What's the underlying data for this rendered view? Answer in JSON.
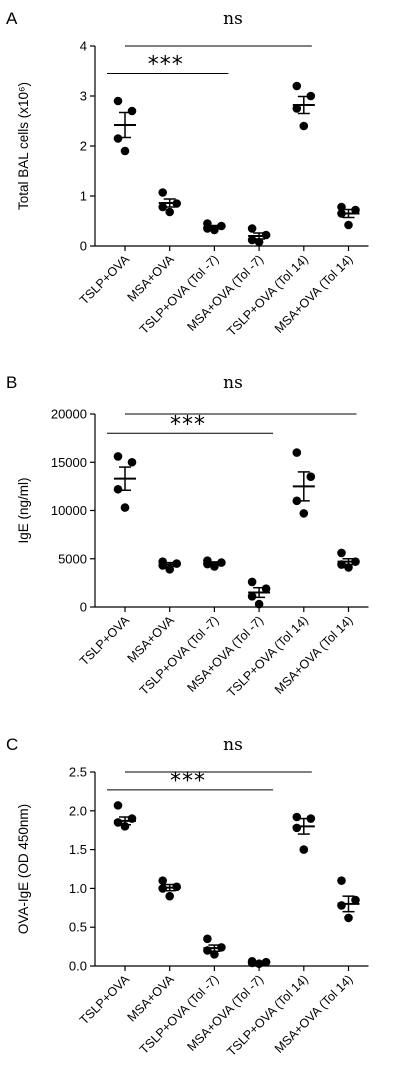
{
  "chart_data": [
    {
      "type": "scatter",
      "panel": "A",
      "ylabel": "Total BAL cells (x10⁶)",
      "ylim": [
        0,
        4
      ],
      "yticks": [
        0,
        1,
        2,
        3,
        4
      ],
      "ytick_labels": [
        "0",
        "1",
        "2",
        "3",
        "4"
      ],
      "categories": [
        "TSLP+OVA",
        "MSA+OVA",
        "TSLP+OVA (Tol -7)",
        "MSA+OVA (Tol -7)",
        "TSLP+OVA (Tol 14)",
        "MSA+OVA (Tol 14)"
      ],
      "series": [
        {
          "points": [
            2.9,
            2.7,
            2.15,
            1.9
          ],
          "mean": 2.42,
          "sem": 0.25
        },
        {
          "points": [
            1.07,
            0.85,
            0.78,
            0.68
          ],
          "mean": 0.86,
          "sem": 0.08
        },
        {
          "points": [
            0.45,
            0.4,
            0.35,
            0.32
          ],
          "mean": 0.38,
          "sem": 0.03
        },
        {
          "points": [
            0.35,
            0.22,
            0.12,
            0.08
          ],
          "mean": 0.2,
          "sem": 0.06
        },
        {
          "points": [
            3.2,
            3.0,
            2.75,
            2.4
          ],
          "mean": 2.82,
          "sem": 0.17
        },
        {
          "points": [
            0.78,
            0.72,
            0.65,
            0.42
          ],
          "mean": 0.65,
          "sem": 0.08
        }
      ],
      "annotations": [
        {
          "text": "***",
          "from": 0,
          "to": 2,
          "y": 3.45
        },
        {
          "text": "ns",
          "from": 0,
          "to": 4,
          "y": 4.0
        }
      ]
    },
    {
      "type": "scatter",
      "panel": "B",
      "ylabel": "IgE (ng/ml)",
      "ylim": [
        0,
        20000
      ],
      "yticks": [
        0,
        5000,
        10000,
        15000,
        20000
      ],
      "ytick_labels": [
        "0",
        "5000",
        "10000",
        "15000",
        "20000"
      ],
      "categories": [
        "TSLP+OVA",
        "MSA+OVA",
        "TSLP+OVA (Tol -7)",
        "MSA+OVA (Tol -7)",
        "TSLP+OVA (Tol 14)",
        "MSA+OVA (Tol 14)"
      ],
      "series": [
        {
          "points": [
            15600,
            15000,
            12200,
            10300
          ],
          "mean": 13300,
          "sem": 1200
        },
        {
          "points": [
            4700,
            4500,
            4300,
            3900
          ],
          "mean": 4400,
          "sem": 200
        },
        {
          "points": [
            4800,
            4600,
            4450,
            4200
          ],
          "mean": 4520,
          "sem": 150
        },
        {
          "points": [
            2600,
            1900,
            1100,
            300
          ],
          "mean": 1500,
          "sem": 500
        },
        {
          "points": [
            16000,
            13500,
            11000,
            9700
          ],
          "mean": 12500,
          "sem": 1500
        },
        {
          "points": [
            5600,
            4700,
            4400,
            4100
          ],
          "mean": 4700,
          "sem": 300
        }
      ],
      "annotations": [
        {
          "text": "***",
          "from": 0,
          "to": 3,
          "y": 18000
        },
        {
          "text": "ns",
          "from": 0,
          "to": 5,
          "y": 20000
        }
      ]
    },
    {
      "type": "scatter",
      "panel": "C",
      "ylabel": "OVA-IgE (OD 450nm)",
      "ylim": [
        0,
        2.5
      ],
      "yticks": [
        0,
        0.5,
        1.0,
        1.5,
        2.0,
        2.5
      ],
      "ytick_labels": [
        "0.0",
        "0.5",
        "1.0",
        "1.5",
        "2.0",
        "2.5"
      ],
      "categories": [
        "TSLP+OVA",
        "MSA+OVA",
        "TSLP+OVA (Tol -7)",
        "MSA+OVA (Tol -7)",
        "TSLP+OVA (Tol 14)",
        "MSA+OVA (Tol 14)"
      ],
      "series": [
        {
          "points": [
            2.07,
            1.9,
            1.85,
            1.8
          ],
          "mean": 1.87,
          "sem": 0.05
        },
        {
          "points": [
            1.1,
            1.02,
            1.0,
            0.9
          ],
          "mean": 1.01,
          "sem": 0.04
        },
        {
          "points": [
            0.35,
            0.24,
            0.2,
            0.15
          ],
          "mean": 0.23,
          "sem": 0.04
        },
        {
          "points": [
            0.06,
            0.05,
            0.04,
            0.03
          ],
          "mean": 0.05,
          "sem": 0.01
        },
        {
          "points": [
            1.92,
            1.9,
            1.78,
            1.5
          ],
          "mean": 1.8,
          "sem": 0.1
        },
        {
          "points": [
            1.1,
            0.85,
            0.78,
            0.62
          ],
          "mean": 0.8,
          "sem": 0.1
        }
      ],
      "annotations": [
        {
          "text": "***",
          "from": 0,
          "to": 3,
          "y": 2.27
        },
        {
          "text": "ns",
          "from": 0,
          "to": 4,
          "y": 2.5
        }
      ]
    }
  ]
}
